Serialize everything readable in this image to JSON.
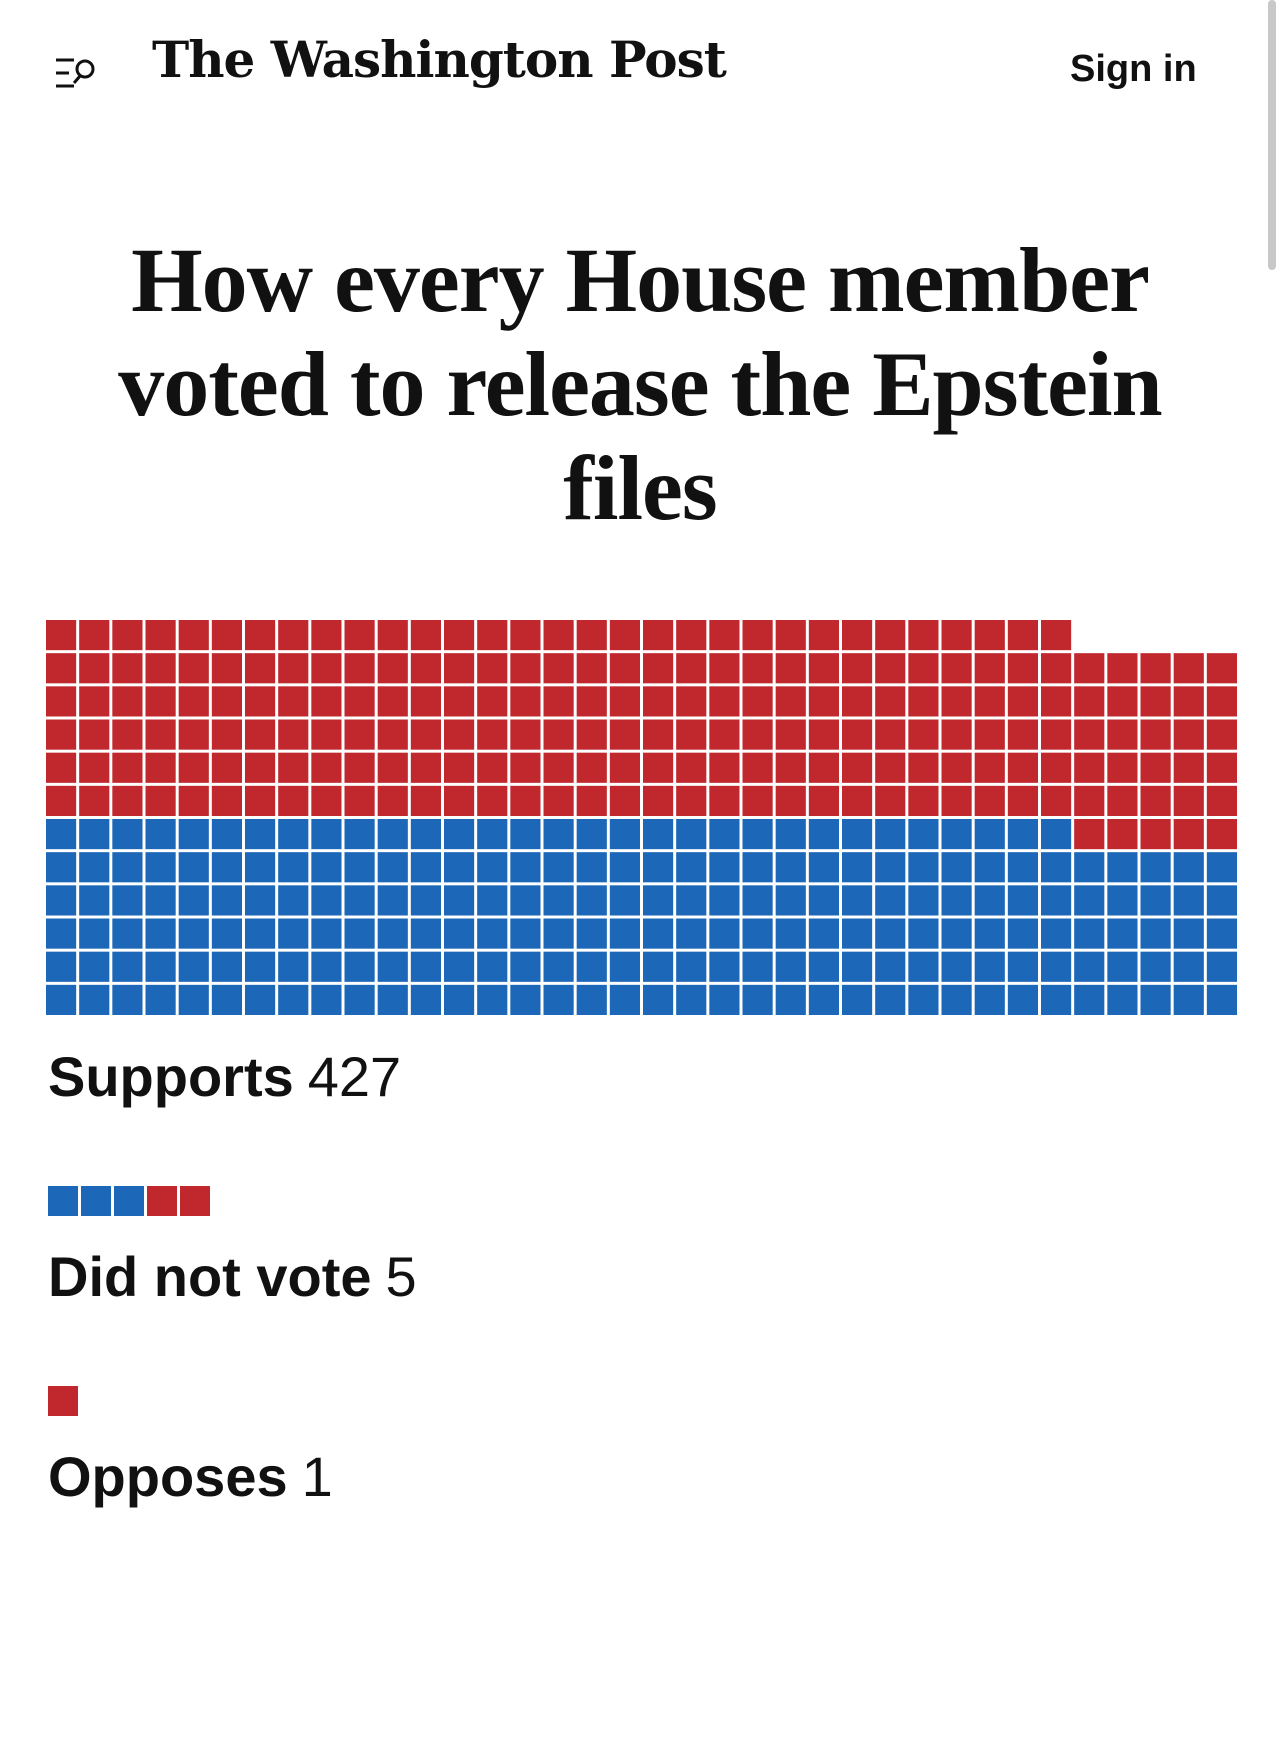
{
  "header": {
    "menu_search_icon": "menu-search-icon",
    "logo": "The Washington Post",
    "sign_in_label": "Sign in"
  },
  "headline": "How every House member voted to release the Epstein files",
  "colors": {
    "republican": "#c0282d",
    "democrat": "#1c67b7"
  },
  "legend": [
    {
      "label": "Supports",
      "count": "427",
      "parties": []
    },
    {
      "label": "Did not vote",
      "count": "5",
      "parties": [
        "democrat",
        "democrat",
        "democrat",
        "republican",
        "republican"
      ]
    },
    {
      "label": "Opposes",
      "count": "1",
      "parties": [
        "republican"
      ]
    }
  ],
  "chart_data": {
    "type": "waffle",
    "title": "How every House member voted to release the Epstein files",
    "groups": [
      {
        "name": "Supports",
        "count": 427,
        "breakdown": {
          "republican": 216,
          "democrat": 211
        }
      },
      {
        "name": "Did not vote",
        "count": 5,
        "breakdown": {
          "republican": 2,
          "democrat": 3
        }
      },
      {
        "name": "Opposes",
        "count": 1,
        "breakdown": {
          "republican": 1,
          "democrat": 0
        }
      }
    ]
  }
}
